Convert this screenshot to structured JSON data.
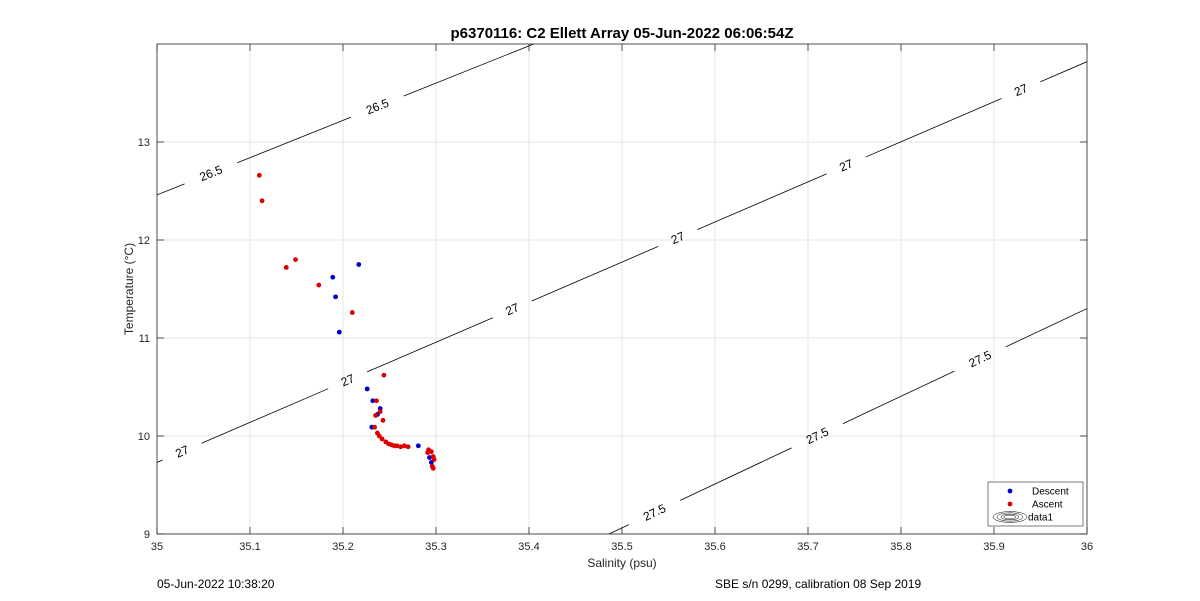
{
  "chart_data": {
    "type": "scatter",
    "title": "p6370116: C2 Ellett Array 05-Jun-2022 06:06:54Z",
    "xlabel": "Salinity (psu)",
    "ylabel": "Temperature (°C)",
    "xlim": [
      35,
      36
    ],
    "ylim": [
      9,
      14
    ],
    "xticks": [
      "35",
      "35.1",
      "35.2",
      "35.3",
      "35.4",
      "35.5",
      "35.6",
      "35.7",
      "35.8",
      "35.9",
      "36"
    ],
    "yticks": [
      "9",
      "10",
      "11",
      "12",
      "13"
    ],
    "grid": true,
    "legend_position": "bottom-right",
    "series": [
      {
        "name": "Descent",
        "color": "#0000cc",
        "marker": "dot",
        "points": [
          [
            35.217,
            11.75
          ],
          [
            35.189,
            11.62
          ],
          [
            35.192,
            11.42
          ],
          [
            35.196,
            11.06
          ],
          [
            35.226,
            10.48
          ],
          [
            35.232,
            10.36
          ],
          [
            35.237,
            10.22
          ],
          [
            35.24,
            10.28
          ],
          [
            35.231,
            10.09
          ],
          [
            35.281,
            9.9
          ],
          [
            35.293,
            9.78
          ],
          [
            35.295,
            9.73
          ]
        ]
      },
      {
        "name": "Ascent",
        "color": "#dd0000",
        "marker": "dot",
        "points": [
          [
            35.11,
            12.66
          ],
          [
            35.113,
            12.4
          ],
          [
            35.149,
            11.8
          ],
          [
            35.139,
            11.72
          ],
          [
            35.174,
            11.54
          ],
          [
            35.21,
            11.26
          ],
          [
            35.244,
            10.62
          ],
          [
            35.236,
            10.36
          ],
          [
            35.24,
            10.25
          ],
          [
            35.235,
            10.21
          ],
          [
            35.243,
            10.16
          ],
          [
            35.234,
            10.09
          ],
          [
            35.237,
            10.03
          ],
          [
            35.239,
            10.0
          ],
          [
            35.242,
            9.97
          ],
          [
            35.246,
            9.94
          ],
          [
            35.249,
            9.92
          ],
          [
            35.252,
            9.91
          ],
          [
            35.255,
            9.9
          ],
          [
            35.258,
            9.9
          ],
          [
            35.262,
            9.89
          ],
          [
            35.266,
            9.9
          ],
          [
            35.27,
            9.89
          ],
          [
            35.292,
            9.86
          ],
          [
            35.295,
            9.84
          ],
          [
            35.297,
            9.79
          ],
          [
            35.298,
            9.76
          ],
          [
            35.296,
            9.69
          ],
          [
            35.297,
            9.67
          ],
          [
            35.291,
            9.83
          ]
        ]
      },
      {
        "name": "data1",
        "color": "#000000",
        "marker": "contour",
        "isopycnals": [
          {
            "label": "26.5",
            "S": [
              35.0,
              35.405
            ],
            "T": [
              12.46,
              14.0
            ],
            "labels_at": [
              35.058,
              35.237
            ]
          },
          {
            "label": "27",
            "S": [
              35.0,
              36.0
            ],
            "T": [
              9.73,
              13.82
            ],
            "labels_at": [
              35.027,
              35.205,
              35.382,
              35.56,
              35.741,
              35.929
            ]
          },
          {
            "label": "27.5",
            "S": [
              35.486,
              36.0
            ],
            "T": [
              9.0,
              11.3
            ],
            "labels_at": [
              35.535,
              35.71,
              35.885
            ]
          }
        ]
      }
    ]
  },
  "footer": {
    "left": "05-Jun-2022 10:38:20",
    "right": "SBE s/n 0299, calibration 08 Sep 2019"
  }
}
